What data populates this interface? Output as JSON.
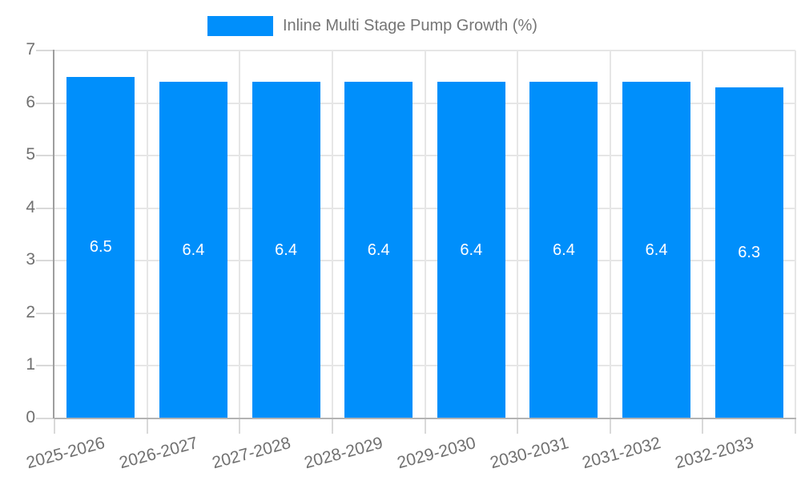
{
  "chart_data": {
    "type": "bar",
    "title": "",
    "legend": [
      "Inline Multi Stage Pump Growth (%)"
    ],
    "legend_position": "top",
    "categories": [
      "2025-2026",
      "2026-2027",
      "2027-2028",
      "2028-2029",
      "2029-2030",
      "2030-2031",
      "2031-2032",
      "2032-2033"
    ],
    "series": [
      {
        "name": "Inline Multi Stage Pump Growth (%)",
        "values": [
          6.5,
          6.4,
          6.4,
          6.4,
          6.4,
          6.4,
          6.4,
          6.3
        ]
      }
    ],
    "bar_value_labels": [
      "6.5",
      "6.4",
      "6.4",
      "6.4",
      "6.4",
      "6.4",
      "6.4",
      "6.3"
    ],
    "xlabel": "",
    "ylabel": "",
    "ylim": [
      0,
      7
    ],
    "yticks": [
      0,
      1,
      2,
      3,
      4,
      5,
      6,
      7
    ],
    "grid": true,
    "colors": {
      "bar": "#008ffb",
      "axis_text": "#707070",
      "legend_text": "#757575",
      "grid_line": "#e6e6e6",
      "y_axis_line": "#9e9e9e",
      "x_axis_line": "#b3b3b3",
      "bar_label_text": "#ffffff"
    }
  }
}
